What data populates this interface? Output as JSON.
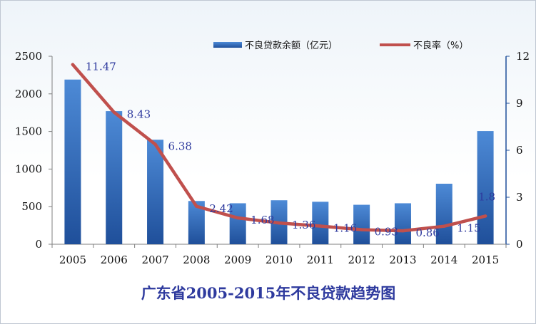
{
  "chart_data": {
    "type": "bar",
    "title": "广东省2005-2015年不良贷款趋势图",
    "categories": [
      "2005",
      "2006",
      "2007",
      "2008",
      "2009",
      "2010",
      "2011",
      "2012",
      "2013",
      "2014",
      "2015"
    ],
    "series": [
      {
        "name": "不良贷款余额（亿元）",
        "type": "bar",
        "axis": "left",
        "values": [
          2190,
          1770,
          1390,
          575,
          545,
          585,
          565,
          525,
          545,
          805,
          1505
        ]
      },
      {
        "name": "不良率（%）",
        "type": "line",
        "axis": "right",
        "values": [
          11.47,
          8.43,
          6.38,
          2.42,
          1.68,
          1.36,
          1.16,
          0.93,
          0.86,
          1.15,
          1.8
        ],
        "data_labels": [
          "11.47",
          "8.43",
          "6.38",
          "2.42",
          "1.68",
          "1.36",
          "1.16",
          "0.93",
          "0.86",
          "1.15",
          "1.8"
        ]
      }
    ],
    "y_left": {
      "min": 0,
      "max": 2500,
      "ticks": [
        "0",
        "500",
        "1000",
        "1500",
        "2000",
        "2500"
      ]
    },
    "y_right": {
      "min": 0,
      "max": 12,
      "ticks": [
        "0",
        "3",
        "6",
        "9",
        "12"
      ]
    },
    "grid": false,
    "legend": "top-right",
    "colors": {
      "bar": "#3b78c9",
      "bar_dark": "#1f4f9a",
      "line": "#c0504d",
      "label": "#2e3a9e"
    }
  }
}
